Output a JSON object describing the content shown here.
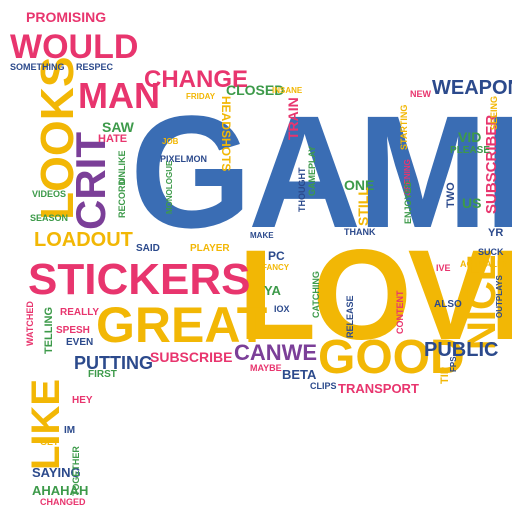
{
  "colors": {
    "blue": "#3a6db4",
    "pink": "#e8356e",
    "yellow": "#f2b705",
    "green": "#3d9a4a",
    "purple": "#7b3f98",
    "navy": "#2c4a8c",
    "red": "#d9334f"
  },
  "words": {
    "game": "GAME",
    "love": "LOVE",
    "stickers": "STICKERS",
    "great": "GREAT",
    "good": "GOOD",
    "looks": "LOOKS",
    "crit": "CRIT",
    "like": "LIKE",
    "nice": "NICE",
    "would": "WOULD",
    "man": "MAN",
    "change": "CHANGE",
    "weapon": "WEAPON",
    "loadout": "LOADOUT",
    "canwe": "CANWE",
    "public": "PUBLIC",
    "putting": "PUTTING",
    "subscribe": "SUBSCRIBE",
    "subscriber": "SUBSCRIBER",
    "promising": "PROMISING",
    "something": "SOMETHING",
    "respec": "RESPEC",
    "closed": "CLOSED",
    "insane": "INSANE",
    "friday": "FRIDAY",
    "saw": "SAW",
    "hate": "HATE",
    "job": "JOB",
    "headshots": "HEADSHOTS",
    "train": "TRAIN",
    "new": "NEW",
    "starting": "STARTING",
    "vid": "VID",
    "please": "PLEASE",
    "seeing": "SEEING",
    "record": "RECORD",
    "unlike": "UNLIKE",
    "pixelmon": "PIXELMON",
    "monologue": "MONOLOGUE",
    "thought": "THOUGHT",
    "gameplay": "GAMEPLAY",
    "opening": "OPENING",
    "enjoyed": "ENJOYED",
    "one": "ONE",
    "still": "STILL",
    "two": "TWO",
    "us": "US",
    "yr": "YR",
    "videos": "VIDEOS",
    "season": "SEASON",
    "said": "SAID",
    "player": "PLAYER",
    "make": "MAKE",
    "thank": "THANK",
    "suck": "SUCK",
    "actually": "ACTUALLY",
    "ive": "IVE",
    "pc": "PC",
    "fancy": "FANCY",
    "ya": "YA",
    "iox": "IOX",
    "catching": "CATCHING",
    "release": "RELEASE",
    "content": "CONTENT",
    "also": "ALSO",
    "outplays": "OUTPLAYS",
    "watched": "WATCHED",
    "really": "REALLY",
    "spesh": "SPESH",
    "telling": "TELLING",
    "even": "EVEN",
    "first": "FIRST",
    "maybe": "MAYBE",
    "beta": "BETA",
    "clips": "CLIPS",
    "transport": "TRANSPORT",
    "tip": "TIP",
    "fps": "FPS",
    "hey": "HEY",
    "im": "IM",
    "get": "GET",
    "saying": "SAYING",
    "together": "TOGETHER",
    "ahahah": "AHAHAH",
    "changed": "CHANGED"
  }
}
